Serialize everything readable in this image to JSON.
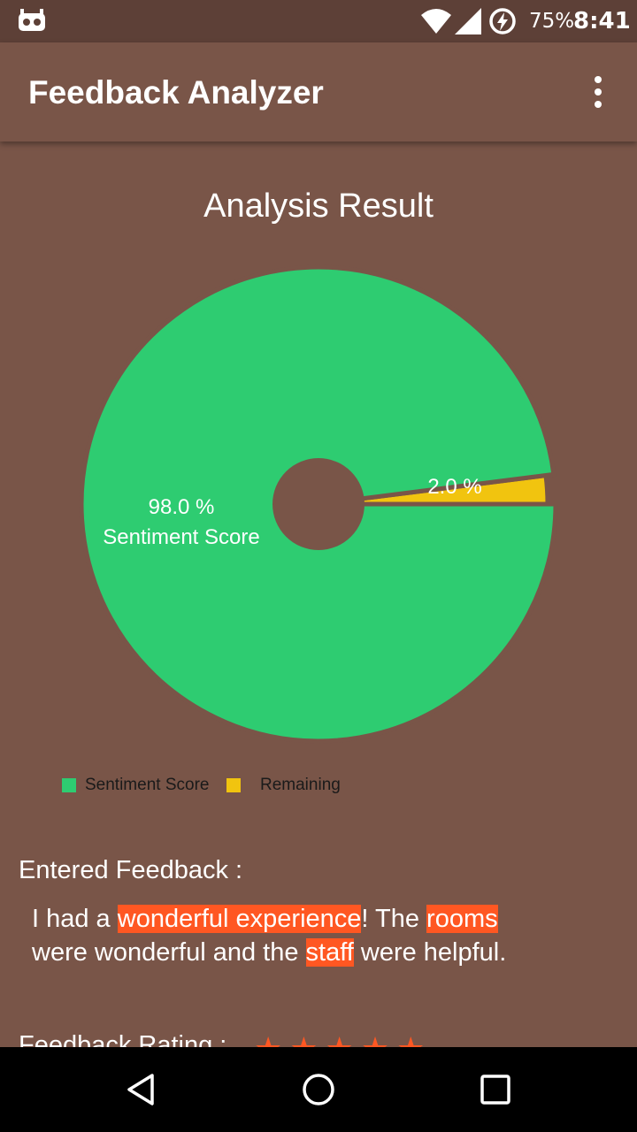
{
  "status_bar": {
    "battery_percent": "75%",
    "time": "8:41",
    "icons": [
      "cyanogen-icon",
      "wifi-icon",
      "signal-icon",
      "battery-charging-icon"
    ]
  },
  "app_bar": {
    "title": "Feedback Analyzer",
    "menu_icon": "overflow-menu-icon"
  },
  "chart": {
    "title": "Analysis Result"
  },
  "chart_data": {
    "type": "pie",
    "title": "Analysis Result",
    "hole": true,
    "slices": [
      {
        "label": "Sentiment Score",
        "value": 98.0,
        "display": "98.0 %",
        "color": "#2ecc71"
      },
      {
        "label": "Remaining",
        "value": 2.0,
        "display": "2.0 %",
        "color": "#f1c40f"
      }
    ],
    "legend": [
      "Sentiment Score",
      "Remaining"
    ],
    "legend_placement": "bottom-left"
  },
  "feedback": {
    "heading": "Entered Feedback :",
    "segments": [
      {
        "text": "I had a ",
        "highlight": false
      },
      {
        "text": "wonderful experience",
        "highlight": true
      },
      {
        "text": "! The ",
        "highlight": false
      },
      {
        "text": "rooms",
        "highlight": true
      },
      {
        "text": " were wonderful and the ",
        "highlight": false
      },
      {
        "text": "staff",
        "highlight": true
      },
      {
        "text": " were helpful.",
        "highlight": false
      }
    ],
    "highlight_color": "#ff5722"
  },
  "rating": {
    "label": "Feedback Rating :",
    "stars": 5,
    "star_glyph": "★★★★★",
    "star_color": "#ff5722"
  },
  "nav_bar": {
    "icons": [
      "back-icon",
      "home-icon",
      "recents-icon"
    ]
  }
}
